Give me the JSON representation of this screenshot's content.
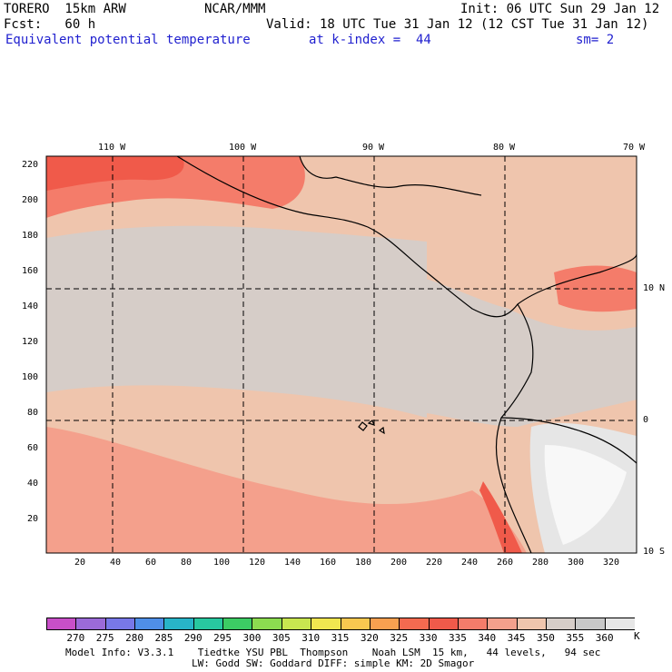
{
  "header": {
    "model": "TORERO  15km ARW",
    "center": "NCAR/MMM",
    "init": "Init: 06 UTC Sun 29 Jan 12",
    "fcst": "Fcst:   60 h",
    "valid": "Valid: 18 UTC Tue 31 Jan 12 (12 CST Tue 31 Jan 12)",
    "field": "Equivalent potential temperature",
    "level": "at k-index =  44",
    "smoothing": "sm= 2"
  },
  "map": {
    "lon_labels": [
      "110 W",
      "100 W",
      "90 W",
      "80 W",
      "70 W"
    ],
    "lat_labels": [
      "10 N",
      "0",
      "10 S"
    ],
    "x_ticks": [
      "20",
      "40",
      "60",
      "80",
      "100",
      "120",
      "140",
      "160",
      "180",
      "200",
      "220",
      "240",
      "260",
      "280",
      "300",
      "320"
    ],
    "y_ticks": [
      "220",
      "200",
      "180",
      "160",
      "140",
      "120",
      "100",
      "80",
      "60",
      "40",
      "20"
    ],
    "colors": {
      "c330": "#f05a4a",
      "c335": "#f47c6a",
      "c340": "#f4a08c",
      "c345": "#efc5ad",
      "c350": "#d6cdc8",
      "c355": "#c8c8c8",
      "c360": "#e6e6e6",
      "c365": "#f8f8f8"
    }
  },
  "colorbar": {
    "labels": [
      "270",
      "275",
      "280",
      "285",
      "290",
      "295",
      "300",
      "305",
      "310",
      "315",
      "320",
      "325",
      "330",
      "335",
      "340",
      "345",
      "350",
      "355",
      "360"
    ],
    "unit": "K",
    "colors": [
      "#c84fc8",
      "#9b6ad8",
      "#7878e8",
      "#4f8fe8",
      "#28b4c8",
      "#28c8a0",
      "#3ccc64",
      "#8cdc50",
      "#c8e650",
      "#f0e650",
      "#f8c850",
      "#f8a050",
      "#f46a50",
      "#f05a4a",
      "#f47c6a",
      "#f4a08c",
      "#efc5ad",
      "#d6cdc8",
      "#c8c8c8",
      "#e6e6e6"
    ]
  },
  "footer": {
    "line1": "Model Info: V3.3.1    Tiedtke YSU PBL  Thompson    Noah LSM  15 km,   44 levels,   94 sec",
    "line2": "LW: Godd SW: Goddard DIFF: simple KM: 2D Smagor"
  }
}
